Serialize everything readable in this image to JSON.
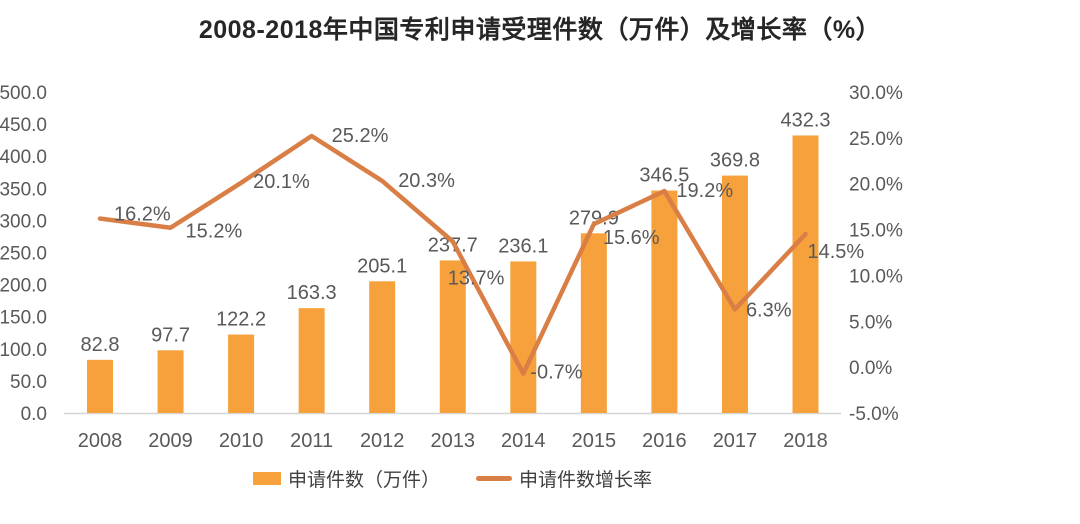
{
  "title": "2008-2018年中国专利申请受理件数（万件）及增长率（%）",
  "legend": {
    "items": [
      {
        "label": "申请件数（万件）",
        "swatch": "bar-swatch"
      },
      {
        "label": "申请件数增长率",
        "swatch": "line-swatch"
      }
    ]
  },
  "colors": {
    "bar": "#F6A13C",
    "line": "#D97E45",
    "axis_text": "#595959",
    "label_text": "#595959",
    "axis_line": "#D6D6D6",
    "title_text": "#262626",
    "legend_text": "#404040",
    "background": "#FFFFFF"
  },
  "chart_data": {
    "type": "bar",
    "title": "2008-2018年中国专利申请受理件数（万件）及增长率（%）",
    "categories": [
      "2008",
      "2009",
      "2010",
      "2011",
      "2012",
      "2013",
      "2014",
      "2015",
      "2016",
      "2017",
      "2018"
    ],
    "series": [
      {
        "name": "申请件数（万件）",
        "type": "bar",
        "axis": "left",
        "values": [
          82.8,
          97.7,
          122.2,
          163.3,
          205.1,
          237.7,
          236.1,
          279.9,
          346.5,
          369.8,
          432.3
        ]
      },
      {
        "name": "申请件数增长率",
        "type": "line",
        "axis": "right",
        "unit": "%",
        "values": [
          16.2,
          15.2,
          20.1,
          25.2,
          20.3,
          13.7,
          -0.7,
          15.6,
          19.2,
          6.3,
          14.5
        ]
      }
    ],
    "left_axis": {
      "min": 0,
      "max": 500,
      "step": 50
    },
    "right_axis": {
      "min": -5,
      "max": 30,
      "step": 5
    },
    "grid": false,
    "legend_position": "bottom"
  }
}
